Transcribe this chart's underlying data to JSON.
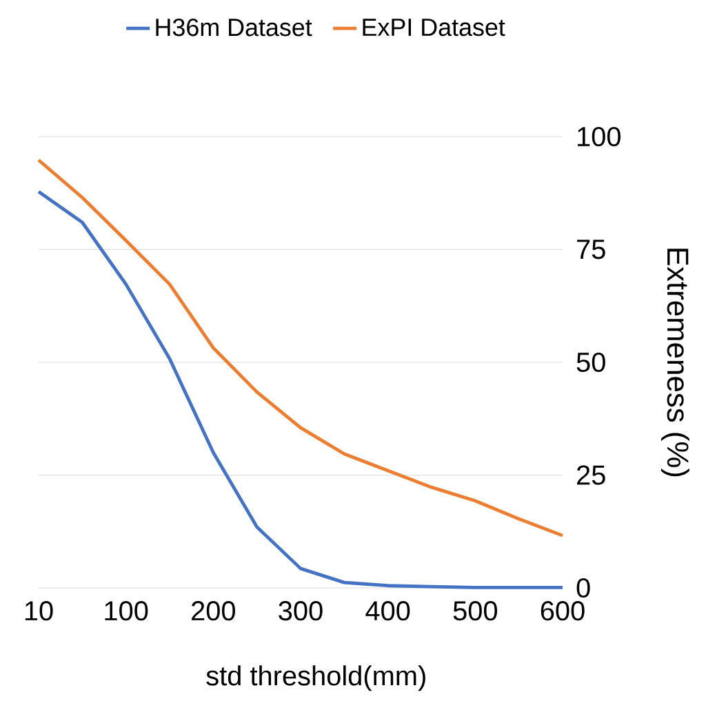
{
  "chart_data": {
    "type": "line",
    "xlabel": "std threshold(mm)",
    "ylabel": "Extremeness (%)",
    "categories": [
      "10",
      null,
      "100",
      null,
      "200",
      null,
      "300",
      null,
      "400",
      null,
      "500",
      null,
      "600"
    ],
    "series": [
      {
        "name": "H36m Dataset",
        "color": "#4472c4",
        "values": [
          87.8,
          81,
          67.3,
          50.8,
          30,
          13.5,
          4.3,
          1.2,
          0.5,
          0.3,
          0.1,
          0.1,
          0.1
        ]
      },
      {
        "name": "ExPI Dataset",
        "color": "#ed7d31",
        "values": [
          94.8,
          86.5,
          77,
          67.3,
          53.2,
          43.4,
          35.5,
          29.7,
          26,
          22.3,
          19.3,
          15.3,
          11.6
        ]
      }
    ],
    "ylim": [
      0,
      100
    ],
    "yticks": [
      0,
      25,
      50,
      75,
      100
    ],
    "grid": "y",
    "legend": "top",
    "marker": "none",
    "line_style": "solid"
  }
}
